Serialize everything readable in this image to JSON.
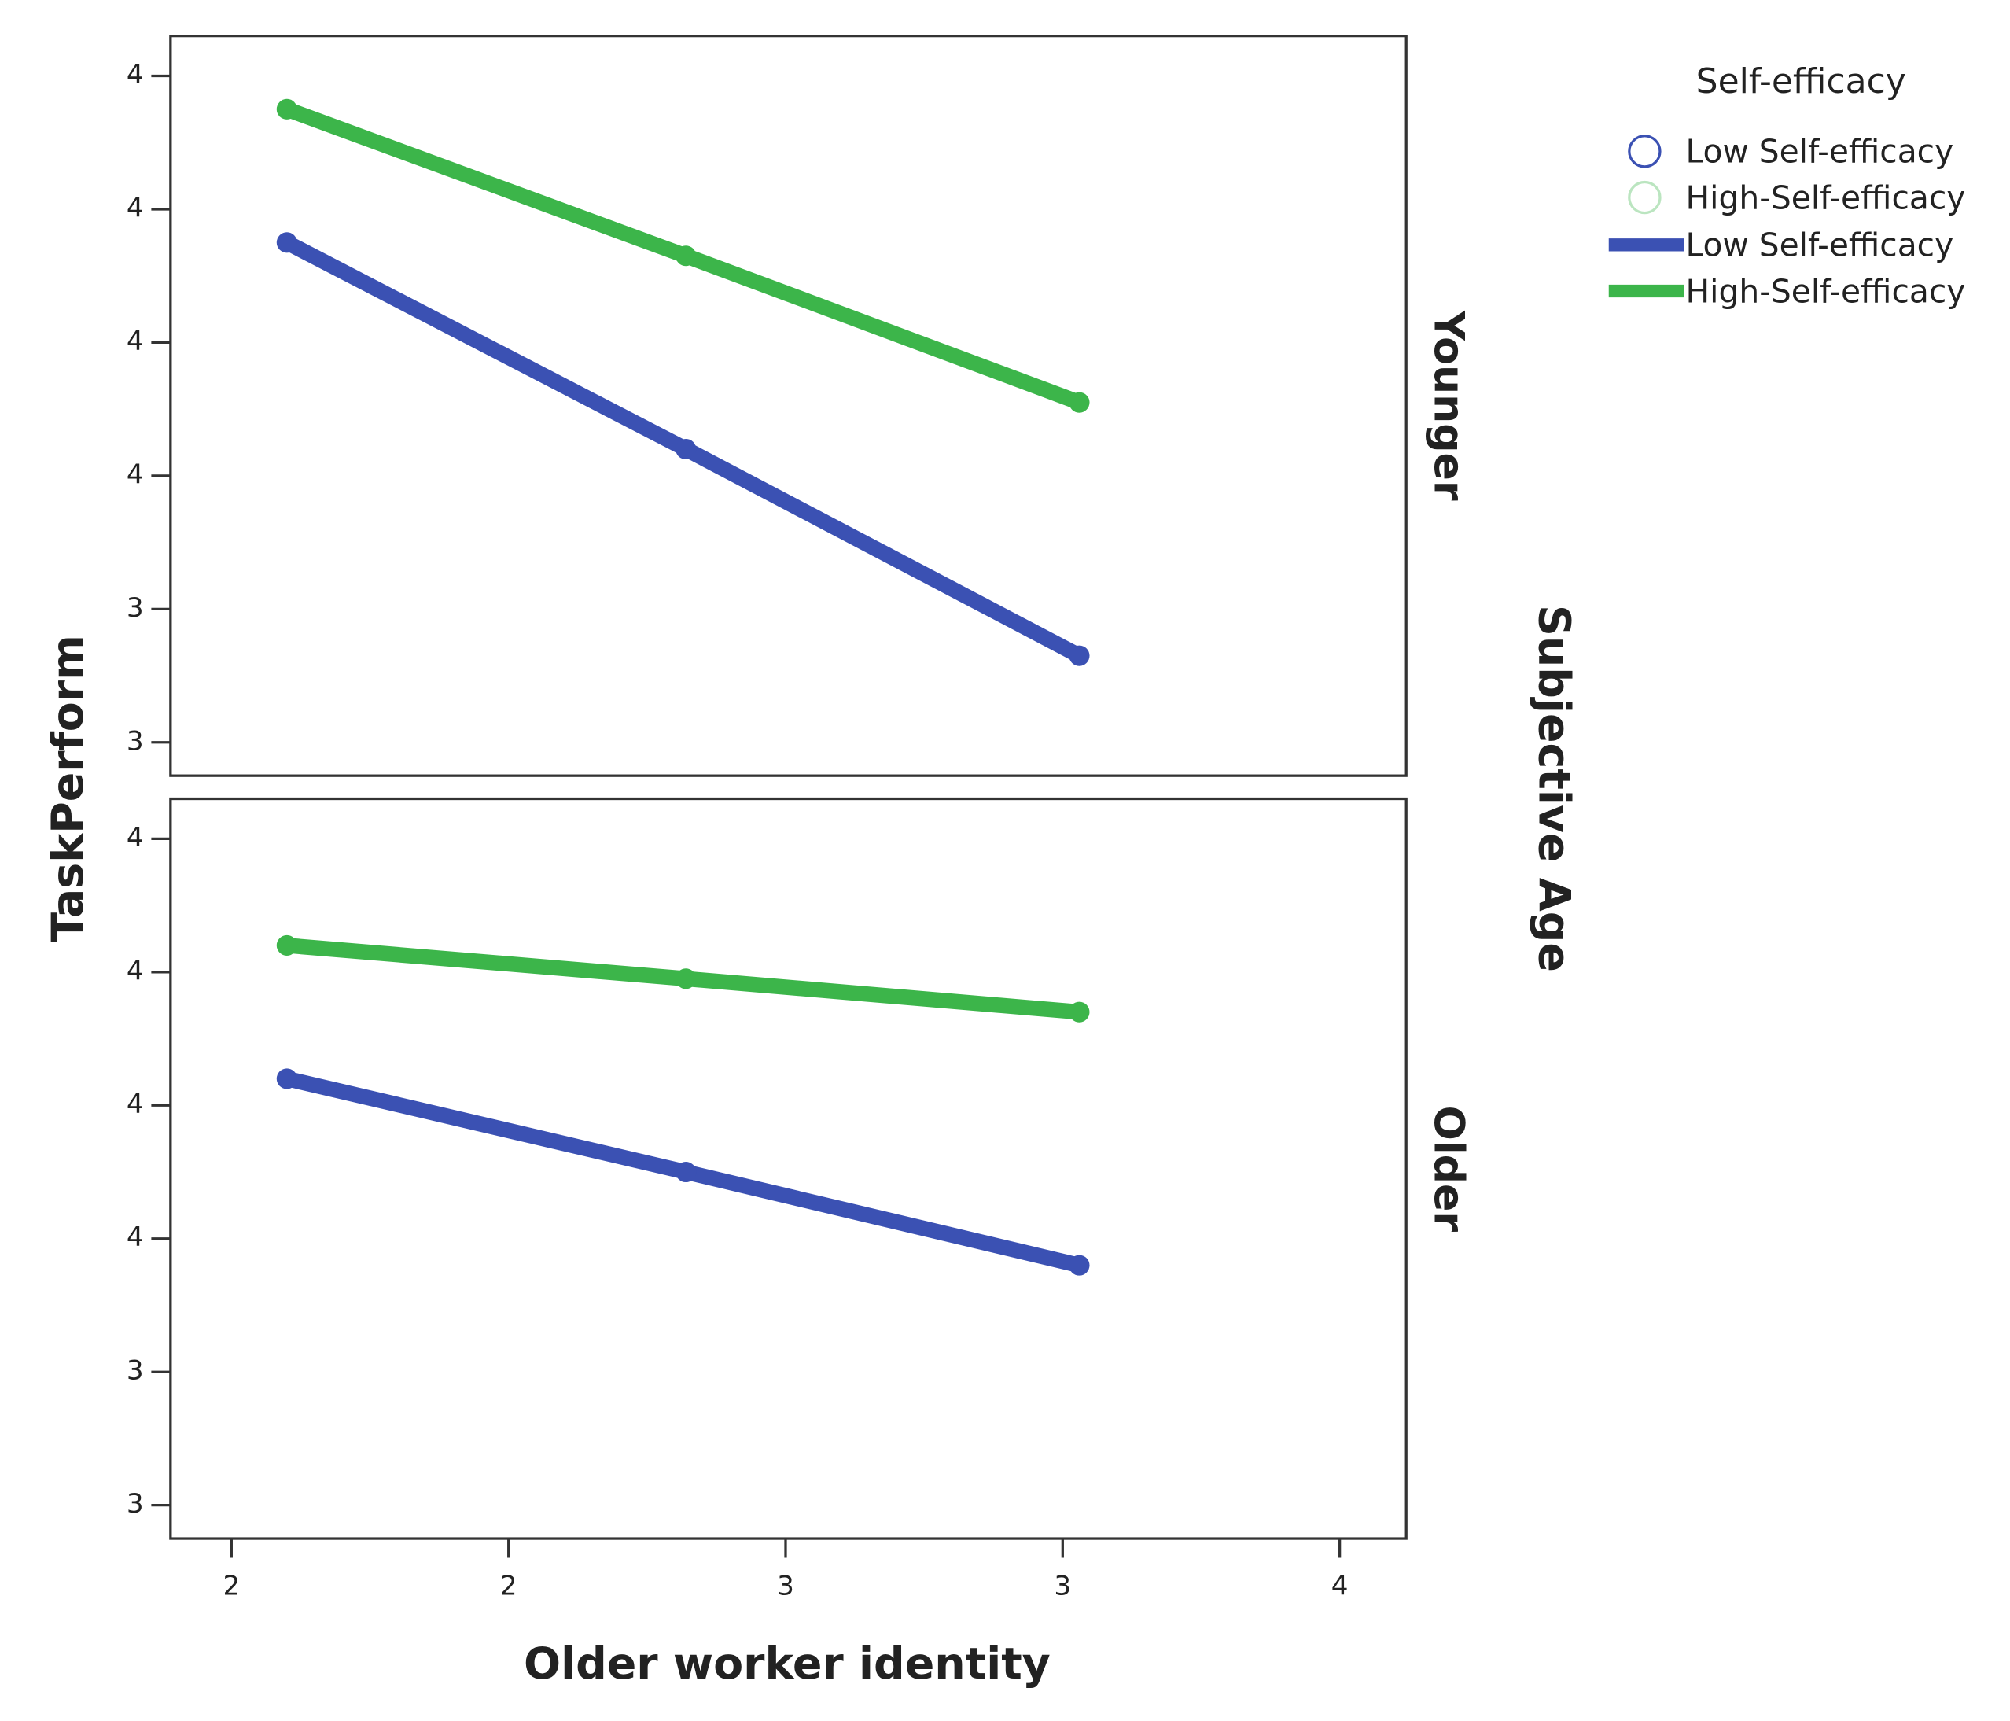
{
  "chart_data": {
    "type": "line",
    "x_label": "Older worker identity",
    "y_label": "TaskPerform",
    "facet_label": "Subjective Age",
    "legend_title": "Self-efficacy",
    "x": [
      1.6,
      2.32,
      3.03
    ],
    "xlim": [
      1.39,
      3.62
    ],
    "xticks": [
      {
        "value": 1.5,
        "label": "2"
      },
      {
        "value": 2.0,
        "label": "2"
      },
      {
        "value": 2.5,
        "label": "3"
      },
      {
        "value": 3.0,
        "label": "3"
      },
      {
        "value": 3.5,
        "label": "4"
      }
    ],
    "ylim": [
      3.15,
      4.26
    ],
    "yticks": [
      {
        "value": 3.2,
        "label": "3"
      },
      {
        "value": 3.4,
        "label": "3"
      },
      {
        "value": 3.6,
        "label": "4"
      },
      {
        "value": 3.8,
        "label": "4"
      },
      {
        "value": 4.0,
        "label": "4"
      },
      {
        "value": 4.2,
        "label": "4"
      }
    ],
    "panels": [
      {
        "label": "Younger",
        "series": [
          {
            "name": "Low Self-efficacy",
            "color": "#3b51b3",
            "values": [
              3.95,
              3.64,
              3.33
            ]
          },
          {
            "name": "High-Self-efficacy",
            "color": "#3cb54a",
            "values": [
              4.15,
              3.93,
              3.71
            ]
          }
        ]
      },
      {
        "label": "Older",
        "series": [
          {
            "name": "Low Self-efficacy",
            "color": "#3b51b3",
            "values": [
              3.84,
              3.7,
              3.56
            ]
          },
          {
            "name": "High-Self-efficacy",
            "color": "#3cb54a",
            "values": [
              4.04,
              3.99,
              3.94
            ]
          }
        ]
      }
    ]
  }
}
